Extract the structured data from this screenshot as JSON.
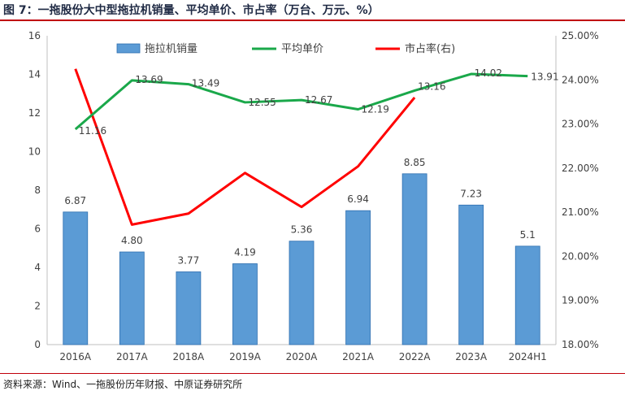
{
  "title": "图 7：一拖股份大中型拖拉机销量、平均单价、市占率（万台、万元、%）",
  "source": "资料来源：Wind、一拖股份历年财报、中原证券研究所",
  "chart_data": {
    "type": "bar+line",
    "categories": [
      "2016A",
      "2017A",
      "2018A",
      "2019A",
      "2020A",
      "2021A",
      "2022A",
      "2023A",
      "2024H1"
    ],
    "series": [
      {
        "name": "拖拉机销量",
        "type": "bar",
        "axis": "left",
        "color": "#5b9bd5",
        "values": [
          6.87,
          4.8,
          3.77,
          4.19,
          5.36,
          6.94,
          8.85,
          7.23,
          5.1
        ],
        "labels": [
          "6.87",
          "4.80",
          "3.77",
          "4.19",
          "5.36",
          "6.94",
          "8.85",
          "7.23",
          "5.1"
        ]
      },
      {
        "name": "平均单价",
        "type": "line",
        "axis": "left",
        "color": "#1aa84a",
        "values": [
          11.16,
          13.69,
          13.49,
          12.55,
          12.67,
          12.19,
          13.16,
          14.02,
          13.91
        ],
        "labels": [
          "11.16",
          "13.69",
          "13.49",
          "12.55",
          "12.67",
          "12.19",
          "13.16",
          "14.02",
          "13.91"
        ]
      },
      {
        "name": "市占率(右)",
        "type": "line",
        "axis": "right",
        "color": "#ff0000",
        "values": [
          24.25,
          20.72,
          20.97,
          21.89,
          21.12,
          22.04,
          23.6,
          null,
          null
        ]
      }
    ],
    "y_left": {
      "min": 0,
      "max": 16,
      "ticks": [
        "0",
        "2",
        "4",
        "6",
        "8",
        "10",
        "12",
        "14",
        "16"
      ]
    },
    "y_right": {
      "min": 18,
      "max": 25,
      "ticks": [
        "18.00%",
        "19.00%",
        "20.00%",
        "21.00%",
        "22.00%",
        "23.00%",
        "24.00%",
        "25.00%"
      ]
    },
    "legend_position": "top",
    "grid": false
  }
}
